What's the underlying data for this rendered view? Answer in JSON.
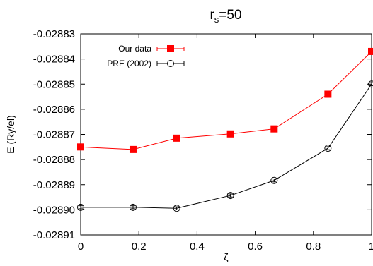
{
  "chart_data": {
    "type": "line",
    "title": "r",
    "title_subscript": "s",
    "title_suffix": "=50",
    "xlabel": "ζ",
    "ylabel": "E (Ry/el)",
    "xlim": [
      0,
      1
    ],
    "ylim": [
      -0.02891,
      -0.02883
    ],
    "xticks": [
      0,
      0.2,
      0.4,
      0.6,
      0.8,
      1
    ],
    "xtick_labels": [
      "0",
      "0.2",
      "0.4",
      "0.6",
      "0.8",
      "1"
    ],
    "yticks": [
      -0.02883,
      -0.02884,
      -0.02885,
      -0.02886,
      -0.02887,
      -0.02888,
      -0.02889,
      -0.0289,
      -0.02891
    ],
    "ytick_labels": [
      "-0.02883",
      "-0.02884",
      "-0.02885",
      "-0.02886",
      "-0.02887",
      "-0.02888",
      "-0.02889",
      "-0.02890",
      "-0.02891"
    ],
    "grid": false,
    "legend_position": "top-left",
    "series": [
      {
        "name": "Our data",
        "color": "#ff0000",
        "marker": "filled-square",
        "x": [
          0,
          0.18,
          0.33,
          0.515,
          0.665,
          0.85,
          1
        ],
        "y": [
          -0.028875,
          -0.028876,
          -0.0288715,
          -0.0288698,
          -0.0288678,
          -0.028854,
          -0.028837
        ],
        "yerr": [
          6e-07,
          6e-07,
          6e-07,
          6e-07,
          6e-07,
          6e-07,
          6e-07
        ]
      },
      {
        "name": "PRE (2002)",
        "color": "#000000",
        "marker": "open-circle",
        "x": [
          0,
          0.18,
          0.33,
          0.515,
          0.665,
          0.85,
          1
        ],
        "y": [
          -0.028899,
          -0.028899,
          -0.0288994,
          -0.0288943,
          -0.0288883,
          -0.0288755,
          -0.02885
        ],
        "yerr": [
          6e-07,
          6e-07,
          6e-07,
          6e-07,
          6e-07,
          6e-07,
          6e-07
        ]
      }
    ]
  }
}
